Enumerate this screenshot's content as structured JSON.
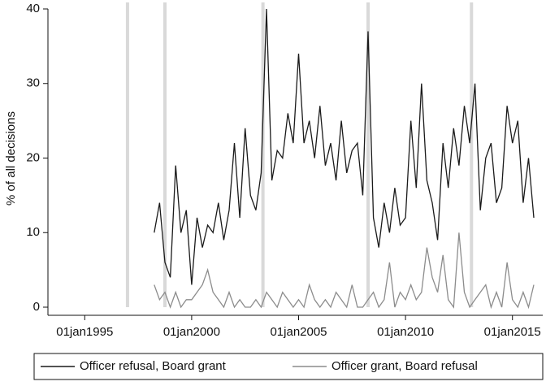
{
  "chart_data": {
    "type": "line",
    "y_label": "% of all decisions",
    "x": [
      "1998-04",
      "1998-07",
      "1998-10",
      "1999-01",
      "1999-04",
      "1999-07",
      "1999-10",
      "2000-01",
      "2000-04",
      "2000-07",
      "2000-10",
      "2001-01",
      "2001-04",
      "2001-07",
      "2001-10",
      "2002-01",
      "2002-04",
      "2002-07",
      "2002-10",
      "2003-01",
      "2003-04",
      "2003-07",
      "2003-10",
      "2004-01",
      "2004-04",
      "2004-07",
      "2004-10",
      "2005-01",
      "2005-04",
      "2005-07",
      "2005-10",
      "2006-01",
      "2006-04",
      "2006-07",
      "2006-10",
      "2007-01",
      "2007-04",
      "2007-07",
      "2007-10",
      "2008-01",
      "2008-04",
      "2008-07",
      "2008-10",
      "2009-01",
      "2009-04",
      "2009-07",
      "2009-10",
      "2010-01",
      "2010-04",
      "2010-07",
      "2010-10",
      "2011-01",
      "2011-04",
      "2011-07",
      "2011-10",
      "2012-01",
      "2012-04",
      "2012-07",
      "2012-10",
      "2013-01",
      "2013-04",
      "2013-07",
      "2013-10",
      "2014-01",
      "2014-04",
      "2014-07",
      "2014-10",
      "2015-01",
      "2015-04",
      "2015-07",
      "2015-10",
      "2016-01"
    ],
    "series": [
      {
        "name": "Officer refusal, Board grant",
        "color": "#1a1a1a",
        "values": [
          10,
          14,
          6,
          4,
          19,
          10,
          13,
          3,
          12,
          8,
          11,
          10,
          14,
          9,
          13,
          22,
          12,
          24,
          15,
          13,
          18,
          40,
          17,
          21,
          20,
          26,
          22,
          34,
          22,
          25,
          20,
          27,
          19,
          22,
          17,
          25,
          18,
          21,
          22,
          15,
          37,
          12,
          8,
          14,
          10,
          16,
          11,
          12,
          25,
          16,
          30,
          17,
          14,
          9,
          22,
          16,
          24,
          19,
          27,
          22,
          30,
          13,
          20,
          22,
          14,
          16,
          27,
          22,
          25,
          14,
          20,
          12
        ]
      },
      {
        "name": "Officer grant, Board refusal",
        "color": "#8c8c8c",
        "values": [
          3,
          1,
          2,
          0,
          2,
          0,
          1,
          1,
          2,
          3,
          5,
          2,
          1,
          0,
          2,
          0,
          1,
          0,
          0,
          1,
          0,
          2,
          1,
          0,
          2,
          1,
          0,
          1,
          0,
          3,
          1,
          0,
          1,
          0,
          2,
          1,
          0,
          3,
          0,
          0,
          1,
          2,
          0,
          1,
          6,
          0,
          2,
          1,
          3,
          1,
          2,
          8,
          4,
          2,
          7,
          1,
          0,
          10,
          2,
          0,
          1,
          2,
          3,
          0,
          2,
          0,
          6,
          1,
          0,
          2,
          0,
          3
        ]
      }
    ],
    "reference_lines": [
      "1997-01",
      "1998-10",
      "2003-05",
      "2008-04",
      "2013-02"
    ],
    "xlim": [
      "1993-08",
      "2016-06"
    ],
    "xticks": [
      {
        "value": "1995-01",
        "label": "01jan1995"
      },
      {
        "value": "2000-01",
        "label": "01jan2000"
      },
      {
        "value": "2005-01",
        "label": "01jan2005"
      },
      {
        "value": "2010-01",
        "label": "01jan2010"
      },
      {
        "value": "2015-01",
        "label": "01jan2015"
      }
    ],
    "ylim": [
      0,
      40
    ],
    "yticks": [
      0,
      10,
      20,
      30,
      40
    ],
    "legend": "bottom"
  }
}
